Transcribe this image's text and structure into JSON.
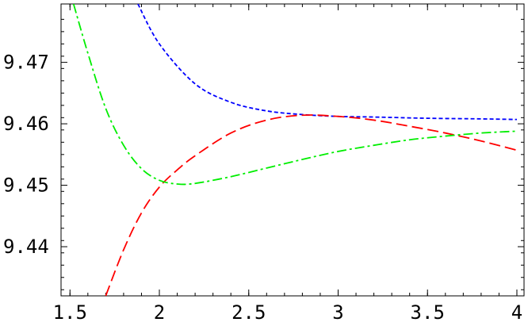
{
  "chart_data": {
    "type": "line",
    "title": "",
    "xlabel": "",
    "ylabel": "",
    "xlim": [
      1.45,
      4.04
    ],
    "ylim": [
      9.432,
      9.4795
    ],
    "x_ticks": [
      1.5,
      2,
      2.5,
      3,
      3.5,
      4
    ],
    "x_tick_labels": [
      "1.5",
      "2",
      "2.5",
      "3",
      "3.5",
      "4"
    ],
    "y_ticks": [
      9.44,
      9.45,
      9.46,
      9.47
    ],
    "y_tick_labels": [
      "9.44",
      "9.45",
      "9.46",
      "9.47"
    ],
    "grid": false,
    "legend": "none",
    "series": [
      {
        "color": "#0000ff",
        "dash": "short-dash",
        "x": [
          1.88,
          2.0,
          2.2,
          2.4,
          2.6,
          2.8,
          3.0,
          3.2,
          3.5,
          3.8,
          4.0
        ],
        "y": [
          9.4795,
          9.473,
          9.4665,
          9.4635,
          9.4621,
          9.4615,
          9.4612,
          9.4611,
          9.4609,
          9.4608,
          9.4607
        ]
      },
      {
        "color": "#ff0000",
        "dash": "long-dash",
        "x": [
          1.7,
          1.8,
          1.9,
          2.0,
          2.1,
          2.2,
          2.4,
          2.6,
          2.8,
          3.0,
          3.2,
          3.4,
          3.6,
          3.8,
          4.0
        ],
        "y": [
          9.432,
          9.4395,
          9.4455,
          9.4497,
          9.4525,
          9.4548,
          9.4585,
          9.4606,
          9.4614,
          9.4612,
          9.4606,
          9.4596,
          9.4585,
          9.4572,
          9.4557
        ]
      },
      {
        "color": "#00ee00",
        "dash": "dash-dot",
        "x": [
          1.52,
          1.6,
          1.7,
          1.8,
          1.9,
          2.0,
          2.1,
          2.2,
          2.4,
          2.6,
          2.8,
          3.0,
          3.2,
          3.4,
          3.6,
          3.8,
          4.0
        ],
        "y": [
          9.4795,
          9.4715,
          9.4625,
          9.4565,
          9.4527,
          9.4508,
          9.4502,
          9.4503,
          9.4514,
          9.4528,
          9.4542,
          9.4555,
          9.4565,
          9.4574,
          9.458,
          9.4585,
          9.4588
        ]
      }
    ]
  }
}
